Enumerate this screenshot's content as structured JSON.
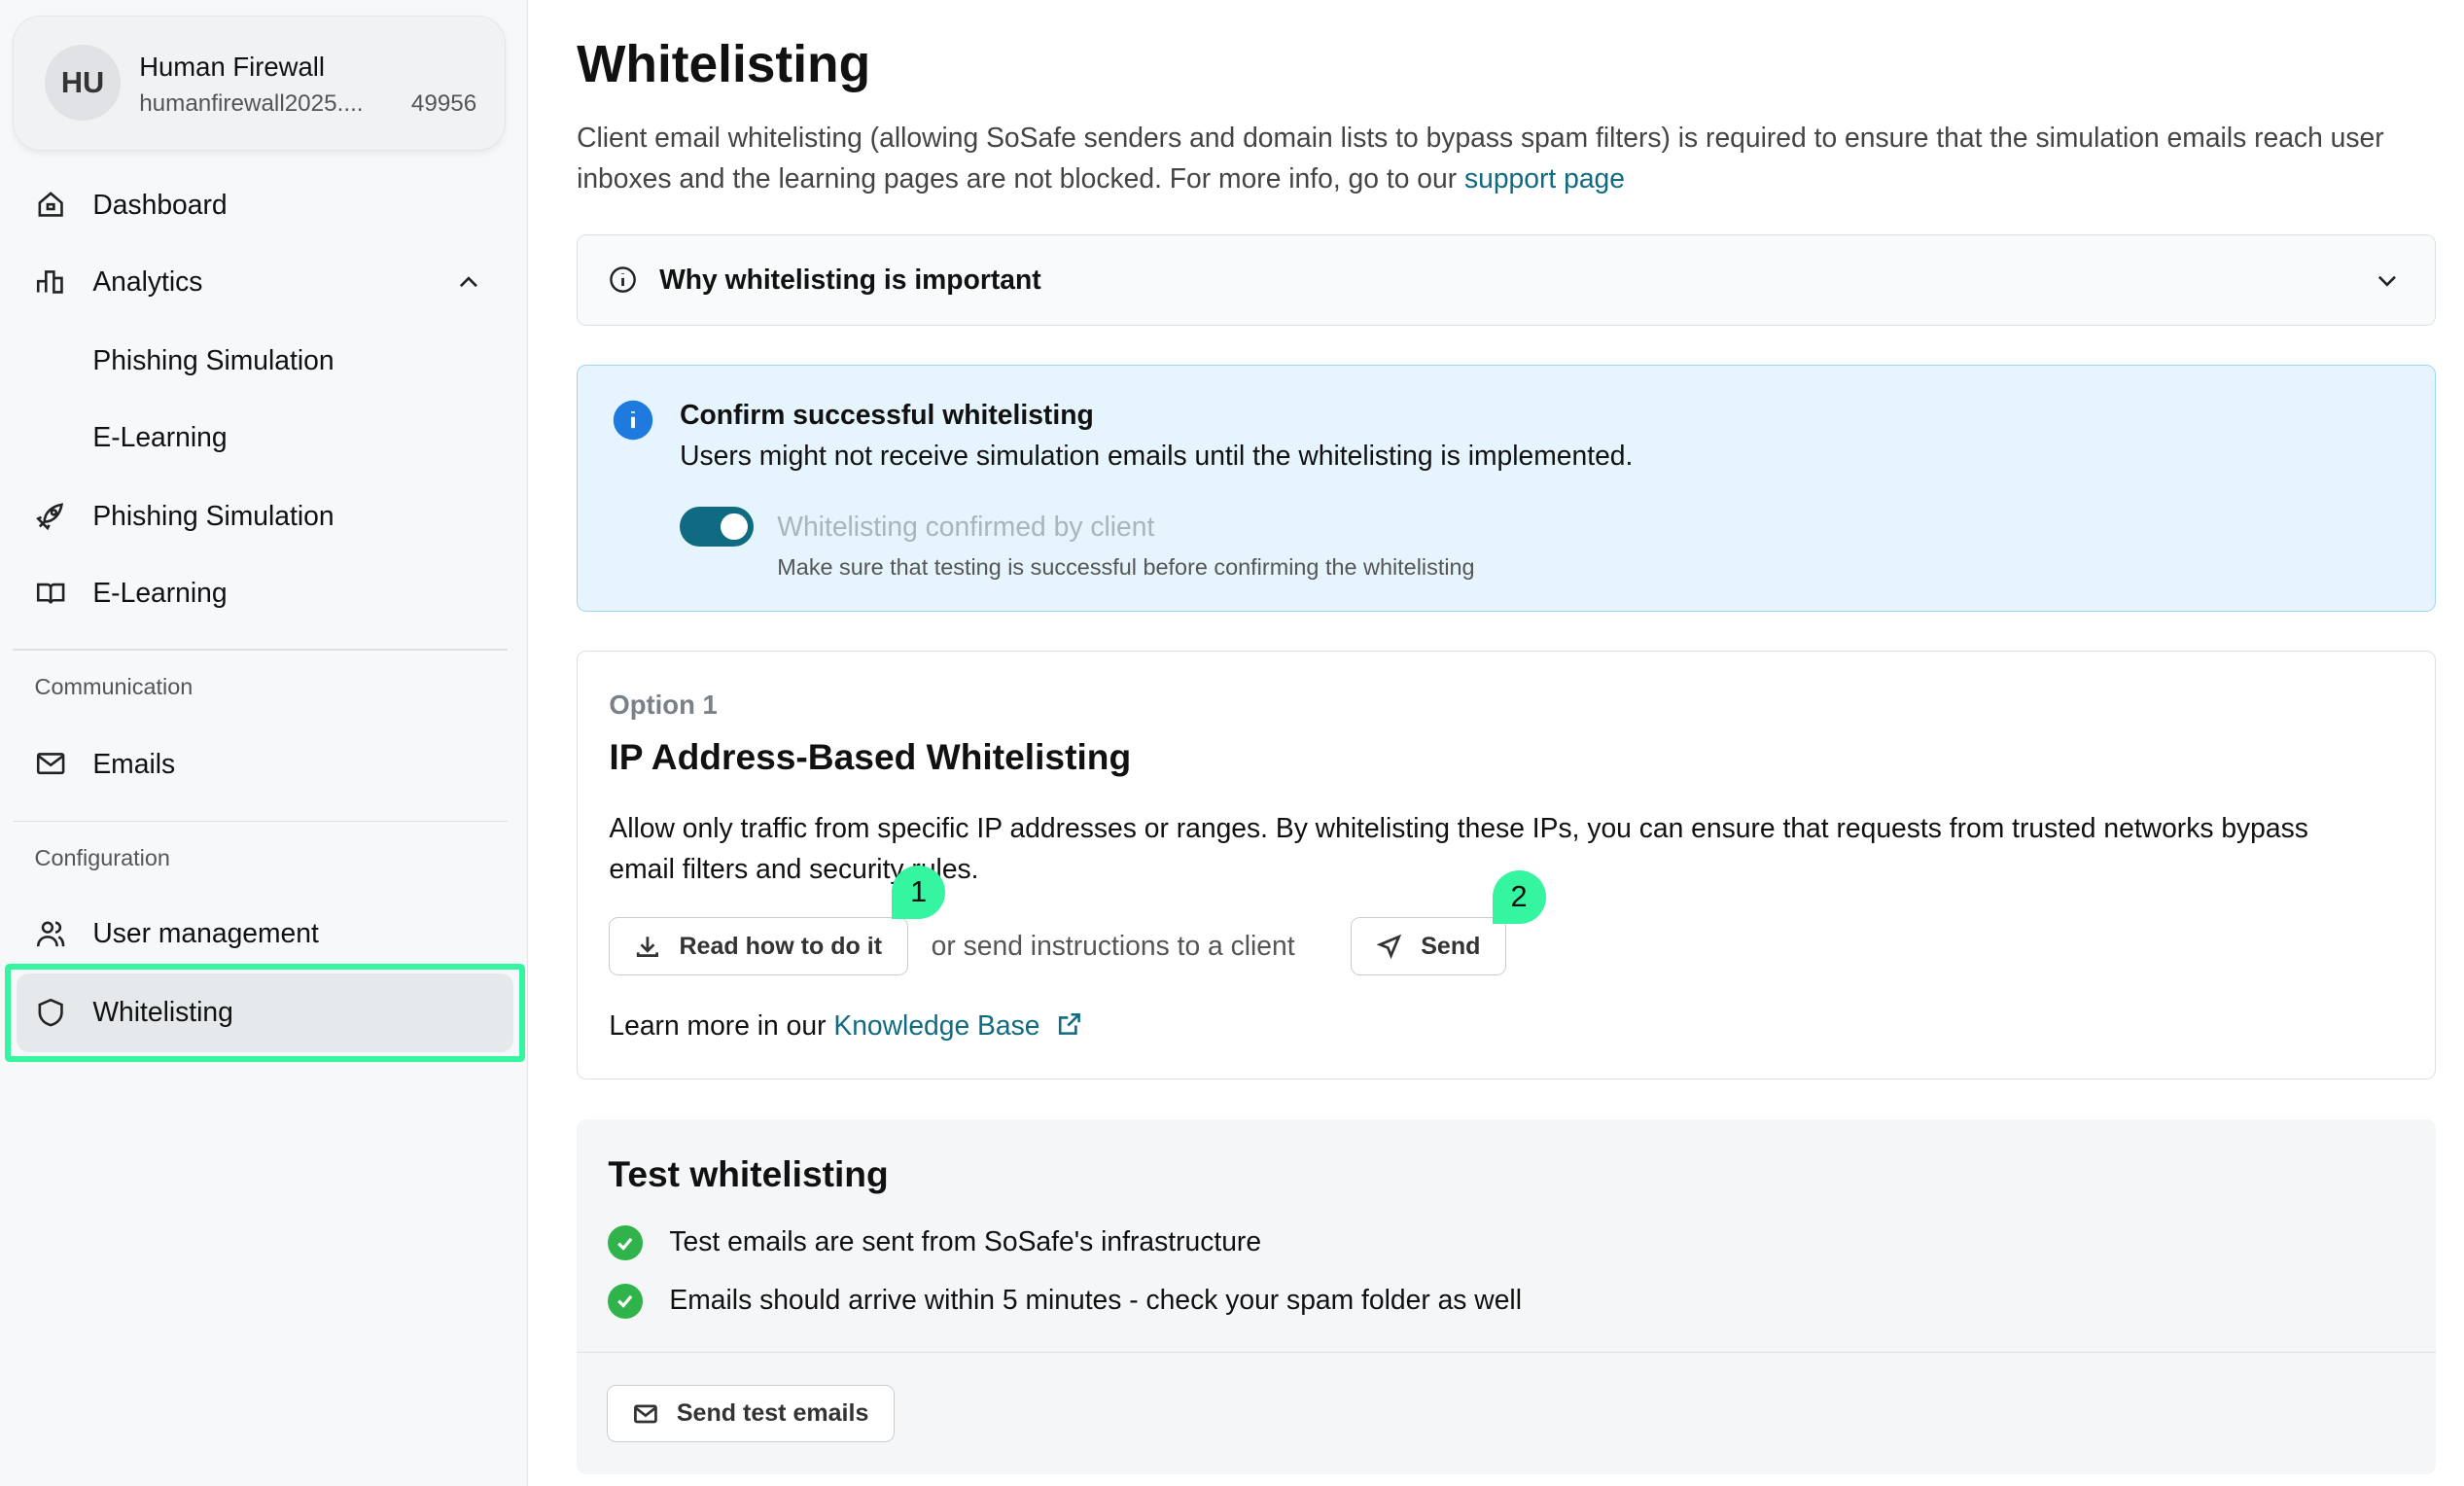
{
  "account": {
    "initials": "HU",
    "name": "Human Firewall",
    "email": "humanfirewall2025....",
    "id": "49956"
  },
  "sidebar": {
    "items": [
      {
        "label": "Dashboard",
        "icon": "home-icon"
      },
      {
        "label": "Analytics",
        "icon": "bar-chart-icon"
      },
      {
        "label": "Phishing Simulation"
      },
      {
        "label": "E-Learning"
      },
      {
        "label": "Phishing Simulation",
        "icon": "rocket-icon"
      },
      {
        "label": "E-Learning",
        "icon": "book-icon"
      }
    ],
    "communication": {
      "title": "Communication",
      "emails": "Emails"
    },
    "configuration": {
      "title": "Configuration",
      "user_management": "User management",
      "whitelisting": "Whitelisting"
    }
  },
  "main": {
    "title": "Whitelisting",
    "intro": "Client email whitelisting (allowing SoSafe senders and domain lists to bypass spam filters) is required to ensure that the simulation emails reach user inboxes and the learning pages are not blocked. For more info, go to our ",
    "support_link": "support page",
    "accordion": "Why whitelisting is important",
    "info": {
      "title": "Confirm successful whitelisting",
      "text": "Users might not receive simulation emails until the whitelisting is implemented.",
      "toggle_label": "Whitelisting confirmed by client",
      "toggle_on": true,
      "toggle_hint": "Make sure that testing is successful before confirming the whitelisting"
    },
    "option": {
      "kicker": "Option 1",
      "title": "IP Address-Based Whitelisting",
      "desc": "Allow only traffic from specific IP addresses or ranges. By whitelisting these IPs, you can ensure that requests from trusted networks bypass email filters and security rules.",
      "read_button": "Read how to do it",
      "or_text": "or send instructions to a client",
      "send_button": "Send",
      "learn_more": "Learn more in our ",
      "kb_link": "Knowledge Base",
      "badge1": "1",
      "badge2": "2"
    },
    "test": {
      "title": "Test whitelisting",
      "items": [
        "Test emails are sent from SoSafe's infrastructure",
        "Emails should arrive within 5 minutes - check your spam folder as well"
      ],
      "button": "Send test emails"
    }
  },
  "colors": {
    "accent": "#0f6b82",
    "highlight": "#35f5a0",
    "info_bg": "#e6f4fd",
    "success": "#2fb34a"
  }
}
